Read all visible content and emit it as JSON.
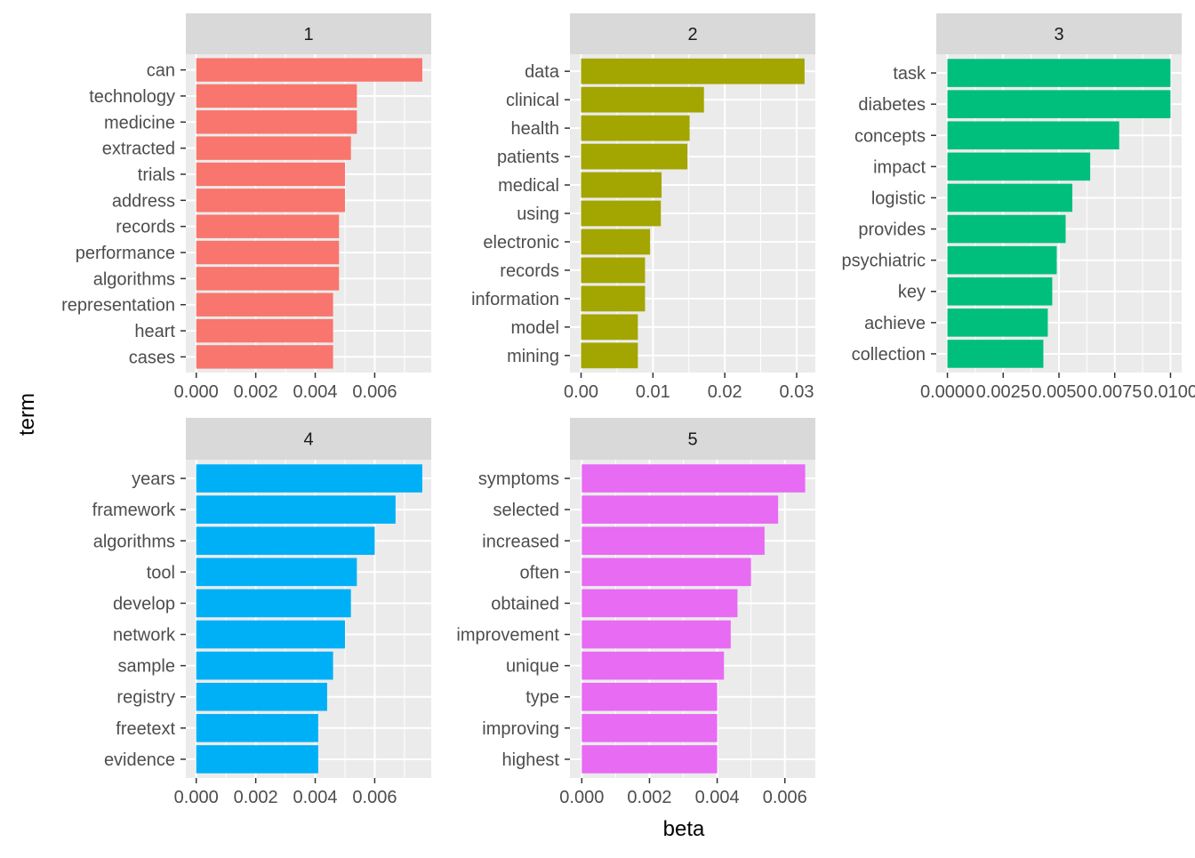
{
  "chart_data": {
    "type": "bar",
    "orientation": "horizontal",
    "facet_layout": "3 columns, 2 rows",
    "xlabel": "beta",
    "ylabel": "term",
    "grid": true,
    "legend": "none",
    "panel_background": "#EBEBEB",
    "strip_background": "#D9D9D9",
    "facets": [
      {
        "label": "1",
        "color": "#F8766D",
        "xlim": [
          -0.00035,
          0.0079
        ],
        "ticks": [
          0,
          0.002,
          0.004,
          0.006
        ],
        "tick_labels": [
          "0.000",
          "0.002",
          "0.004",
          "0.006"
        ],
        "terms": [
          "can",
          "technology",
          "medicine",
          "extracted",
          "trials",
          "address",
          "records",
          "performance",
          "algorithms",
          "representation",
          "heart",
          "cases"
        ],
        "values": [
          0.0076,
          0.0054,
          0.0054,
          0.0052,
          0.005,
          0.005,
          0.0048,
          0.0048,
          0.0048,
          0.0046,
          0.0046,
          0.0046
        ]
      },
      {
        "label": "2",
        "color": "#A3A500",
        "xlim": [
          -0.00155,
          0.0326
        ],
        "ticks": [
          0,
          0.01,
          0.02,
          0.03
        ],
        "tick_labels": [
          "0.00",
          "0.01",
          "0.02",
          "0.03"
        ],
        "terms": [
          "data",
          "clinical",
          "health",
          "patients",
          "medical",
          "using",
          "electronic",
          "records",
          "information",
          "model",
          "mining"
        ],
        "values": [
          0.0311,
          0.0171,
          0.0151,
          0.0148,
          0.0112,
          0.0111,
          0.0096,
          0.0089,
          0.0089,
          0.0079,
          0.0079
        ]
      },
      {
        "label": "3",
        "color": "#00BF7D",
        "xlim": [
          -0.0005,
          0.0105
        ],
        "ticks": [
          0,
          0.0025,
          0.005,
          0.0075,
          0.01
        ],
        "tick_labels": [
          "0.0000",
          "0.0025",
          "0.0050",
          "0.0075",
          "0.0100"
        ],
        "terms": [
          "task",
          "diabetes",
          "concepts",
          "impact",
          "logistic",
          "provides",
          "psychiatric",
          "key",
          "achieve",
          "collection"
        ],
        "values": [
          0.01,
          0.01,
          0.0077,
          0.0064,
          0.0056,
          0.0053,
          0.0049,
          0.0047,
          0.0045,
          0.0043
        ]
      },
      {
        "label": "4",
        "color": "#00B0F6",
        "xlim": [
          -0.00035,
          0.0079
        ],
        "ticks": [
          0,
          0.002,
          0.004,
          0.006
        ],
        "tick_labels": [
          "0.000",
          "0.002",
          "0.004",
          "0.006"
        ],
        "terms": [
          "years",
          "framework",
          "algorithms",
          "tool",
          "develop",
          "network",
          "sample",
          "registry",
          "freetext",
          "evidence"
        ],
        "values": [
          0.0076,
          0.0067,
          0.006,
          0.0054,
          0.0052,
          0.005,
          0.0046,
          0.0044,
          0.0041,
          0.0041
        ]
      },
      {
        "label": "5",
        "color": "#E76BF3",
        "xlim": [
          -0.00035,
          0.0069
        ],
        "ticks": [
          0,
          0.002,
          0.004,
          0.006
        ],
        "tick_labels": [
          "0.000",
          "0.002",
          "0.004",
          "0.006"
        ],
        "terms": [
          "symptoms",
          "selected",
          "increased",
          "often",
          "obtained",
          "improvement",
          "unique",
          "type",
          "improving",
          "highest"
        ],
        "values": [
          0.0066,
          0.0058,
          0.0054,
          0.005,
          0.0046,
          0.0044,
          0.0042,
          0.004,
          0.004,
          0.004
        ]
      }
    ]
  }
}
